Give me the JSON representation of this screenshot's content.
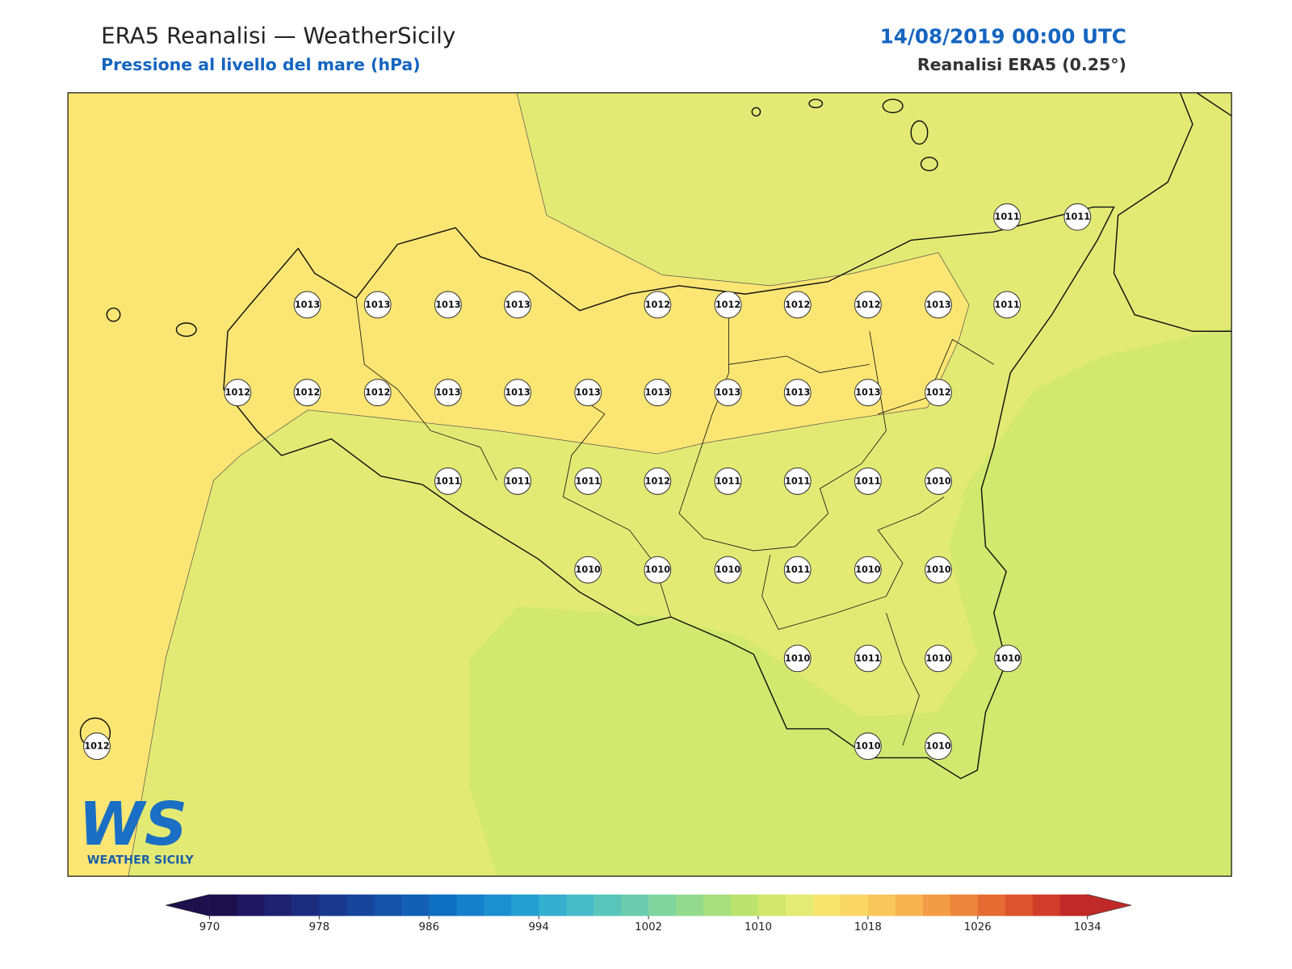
{
  "header": {
    "title": "ERA5 Reanalisi — WeatherSicily",
    "subtitle": "Pressione al livello del mare (hPa)",
    "date": "14/08/2019 00:00 UTC",
    "source": "Reanalisi ERA5 (0.25°)"
  },
  "stations": [
    1011,
    1011,
    1013,
    1013,
    1013,
    1013,
    1012,
    1012,
    1012,
    1012,
    1013,
    1011,
    1012,
    1012,
    1012,
    1013,
    1013,
    1013,
    1013,
    1013,
    1013,
    1013,
    1012,
    1011,
    1011,
    1011,
    1012,
    1011,
    1011,
    1011,
    1010,
    1010,
    1010,
    1010,
    1011,
    1010,
    1010,
    1010,
    1011,
    1010,
    1010,
    1012,
    1010,
    1010
  ],
  "colorbar": {
    "ticks": [
      970,
      978,
      986,
      994,
      1002,
      1010,
      1018,
      1026,
      1034
    ],
    "colors": [
      "#1e0f4d",
      "#1f1860",
      "#1e2270",
      "#1c2d80",
      "#1a398e",
      "#17459b",
      "#1452a8",
      "#1160b5",
      "#0f6fc1",
      "#147fca",
      "#1b8fcf",
      "#259fd2",
      "#35afcf",
      "#47bbc7",
      "#59c5bb",
      "#6ccdae",
      "#80d59f",
      "#94da8e",
      "#a8df7c",
      "#bce36d",
      "#d2e76c",
      "#e4ea76",
      "#f6e46c",
      "#fbd765",
      "#f9c75b",
      "#f6b350",
      "#f29d45",
      "#ed863c",
      "#e56d34",
      "#dc552e",
      "#d03d2a",
      "#bf2a28"
    ]
  },
  "logo": {
    "mark": "WS",
    "text": "WEATHER SICILY"
  }
}
